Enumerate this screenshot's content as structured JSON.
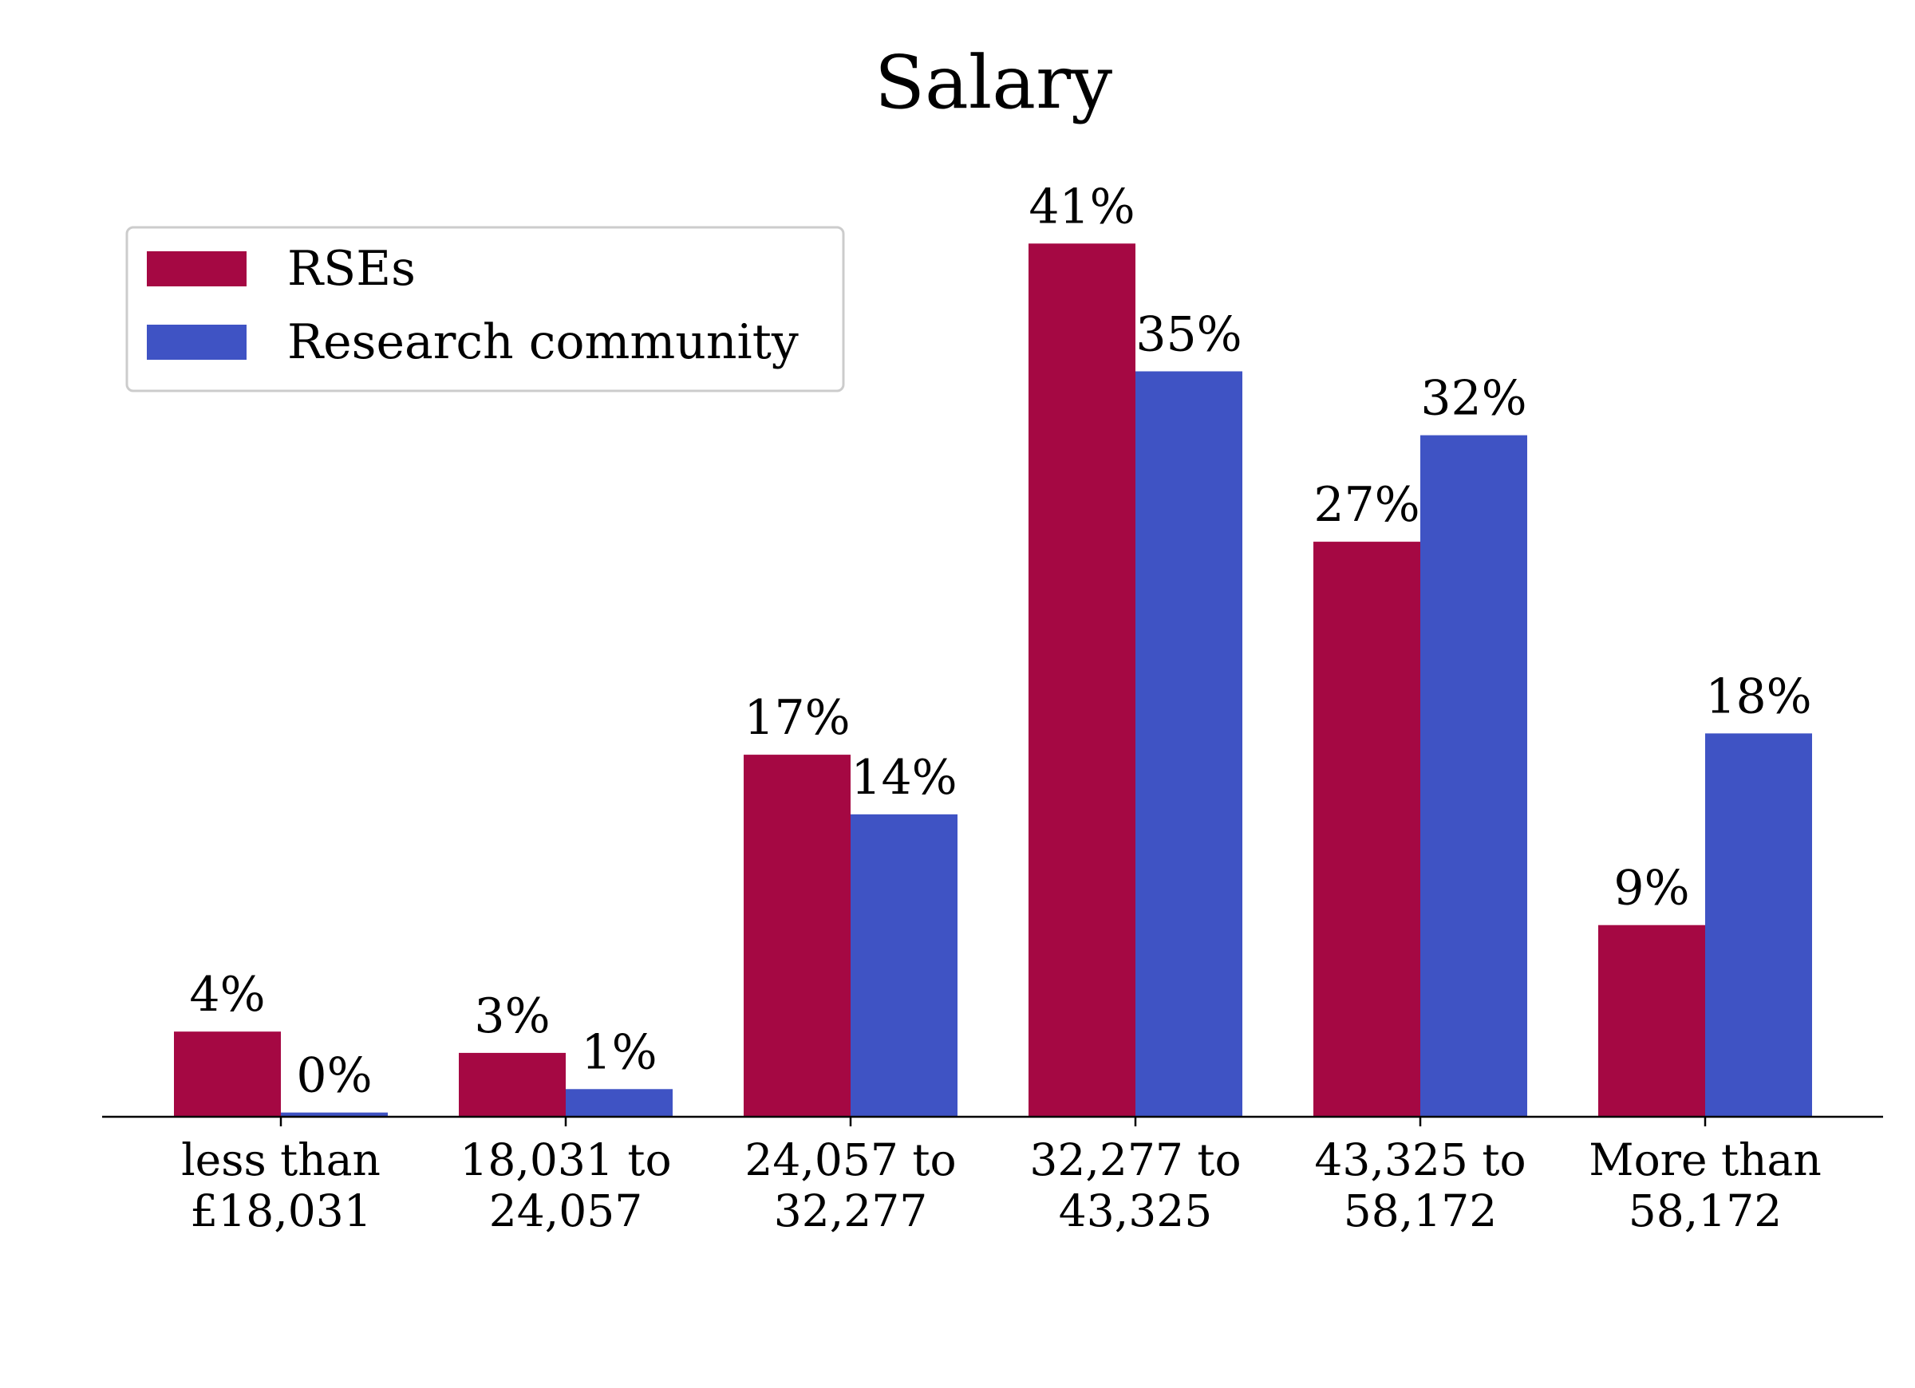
{
  "chart_data": {
    "type": "bar",
    "title": "Salary",
    "xlabel": "",
    "ylabel": "",
    "ylim": [
      0,
      43
    ],
    "grid": false,
    "legend_position": "top-left",
    "categories": [
      [
        "less than",
        "£18,031"
      ],
      [
        "18,031 to",
        "24,057"
      ],
      [
        "24,057 to",
        "32,277"
      ],
      [
        "32,277 to",
        "43,325"
      ],
      [
        "43,325 to",
        "58,172"
      ],
      [
        "More than",
        "58,172"
      ]
    ],
    "series": [
      {
        "name": "RSEs",
        "color": "#a50843",
        "values": [
          4,
          3,
          17,
          41,
          27,
          9
        ],
        "labels": [
          "4%",
          "3%",
          "17%",
          "41%",
          "27%",
          "9%"
        ]
      },
      {
        "name": "Research community",
        "color": "#3f53c4",
        "values": [
          0.2,
          1.3,
          14.2,
          35,
          32,
          18
        ],
        "labels": [
          "0%",
          "1%",
          "14%",
          "35%",
          "32%",
          "18%"
        ]
      }
    ]
  }
}
